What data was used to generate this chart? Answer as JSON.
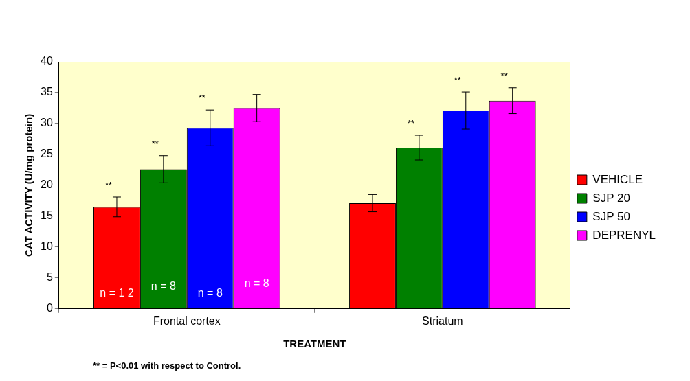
{
  "chart_data": {
    "type": "bar",
    "xlabel": "TREATMENT",
    "ylabel": "CAT ACTIVITY (U/mg protein)",
    "categories": [
      "Frontal cortex",
      "Striatum"
    ],
    "series": [
      {
        "name": "VEHICLE",
        "color": "#ff0000",
        "values": [
          16.5,
          17.1
        ],
        "errors": [
          1.6,
          1.4
        ],
        "value_labels": [
          "**",
          null
        ]
      },
      {
        "name": "SJP 20",
        "color": "#008000",
        "values": [
          22.6,
          26.1
        ],
        "errors": [
          2.2,
          2.0
        ],
        "value_labels": [
          "**",
          "**"
        ]
      },
      {
        "name": "SJP 50",
        "color": "#0000ff",
        "values": [
          29.3,
          32.1
        ],
        "errors": [
          2.9,
          3.0
        ],
        "value_labels": [
          "**",
          "**"
        ]
      },
      {
        "name": "DEPRENYL",
        "color": "#ff00ff",
        "values": [
          32.5,
          33.7
        ],
        "errors": [
          2.2,
          2.1
        ],
        "value_labels": [
          null,
          "**"
        ]
      }
    ],
    "ylim": [
      0,
      40
    ],
    "yticks": [
      0,
      5,
      10,
      15,
      20,
      25,
      30,
      35,
      40
    ],
    "grid": false,
    "legend": "right",
    "annotations": [
      "n = 1 2",
      "n = 8",
      "n = 8",
      "n = 8",
      "** = P<0.01 with respect to Control."
    ]
  }
}
